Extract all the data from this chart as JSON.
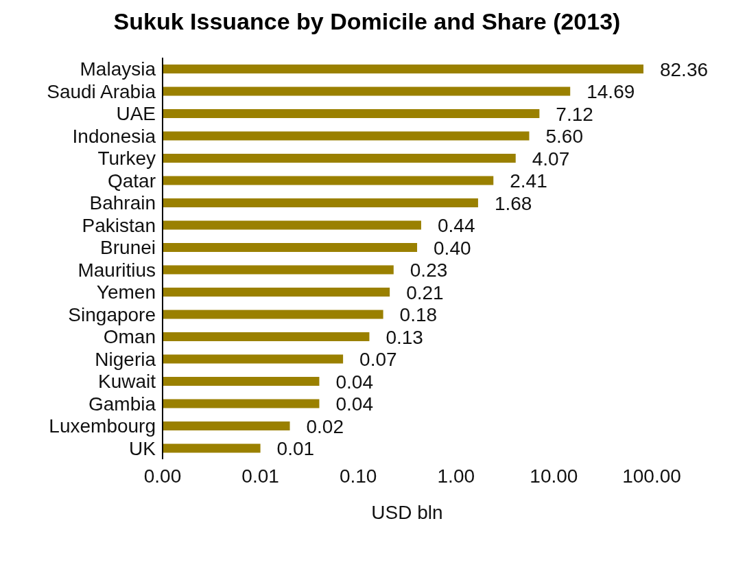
{
  "chart_data": {
    "type": "bar",
    "orientation": "horizontal",
    "title": "Sukuk Issuance by Domicile and Share (2013)",
    "xlabel": "USD bln",
    "categories": [
      "Malaysia",
      "Saudi Arabia",
      "UAE",
      "Indonesia",
      "Turkey",
      "Qatar",
      "Bahrain",
      "Pakistan",
      "Brunei",
      "Mauritius",
      "Yemen",
      "Singapore",
      "Oman",
      "Nigeria",
      "Kuwait",
      "Gambia",
      "Luxembourg",
      "UK"
    ],
    "values": [
      82.36,
      14.69,
      7.12,
      5.6,
      4.07,
      2.41,
      1.68,
      0.44,
      0.4,
      0.23,
      0.21,
      0.18,
      0.13,
      0.07,
      0.04,
      0.04,
      0.02,
      0.01
    ],
    "value_labels": [
      "82.36",
      "14.69",
      "7.12",
      "5.60",
      "4.07",
      "2.41",
      "1.68",
      "0.44",
      "0.40",
      "0.23",
      "0.21",
      "0.18",
      "0.13",
      "0.07",
      "0.04",
      "0.04",
      "0.02",
      "0.01"
    ],
    "color": "#9a8000",
    "log": "x",
    "xlim": [
      0.001,
      100
    ],
    "xticks": [
      {
        "value": 0.001,
        "label": "0.00"
      },
      {
        "value": 0.01,
        "label": "0.01"
      },
      {
        "value": 0.1,
        "label": "0.10"
      },
      {
        "value": 1,
        "label": "1.00"
      },
      {
        "value": 10,
        "label": "10.00"
      },
      {
        "value": 100,
        "label": "100.00"
      }
    ],
    "grid": false,
    "legend": false
  }
}
